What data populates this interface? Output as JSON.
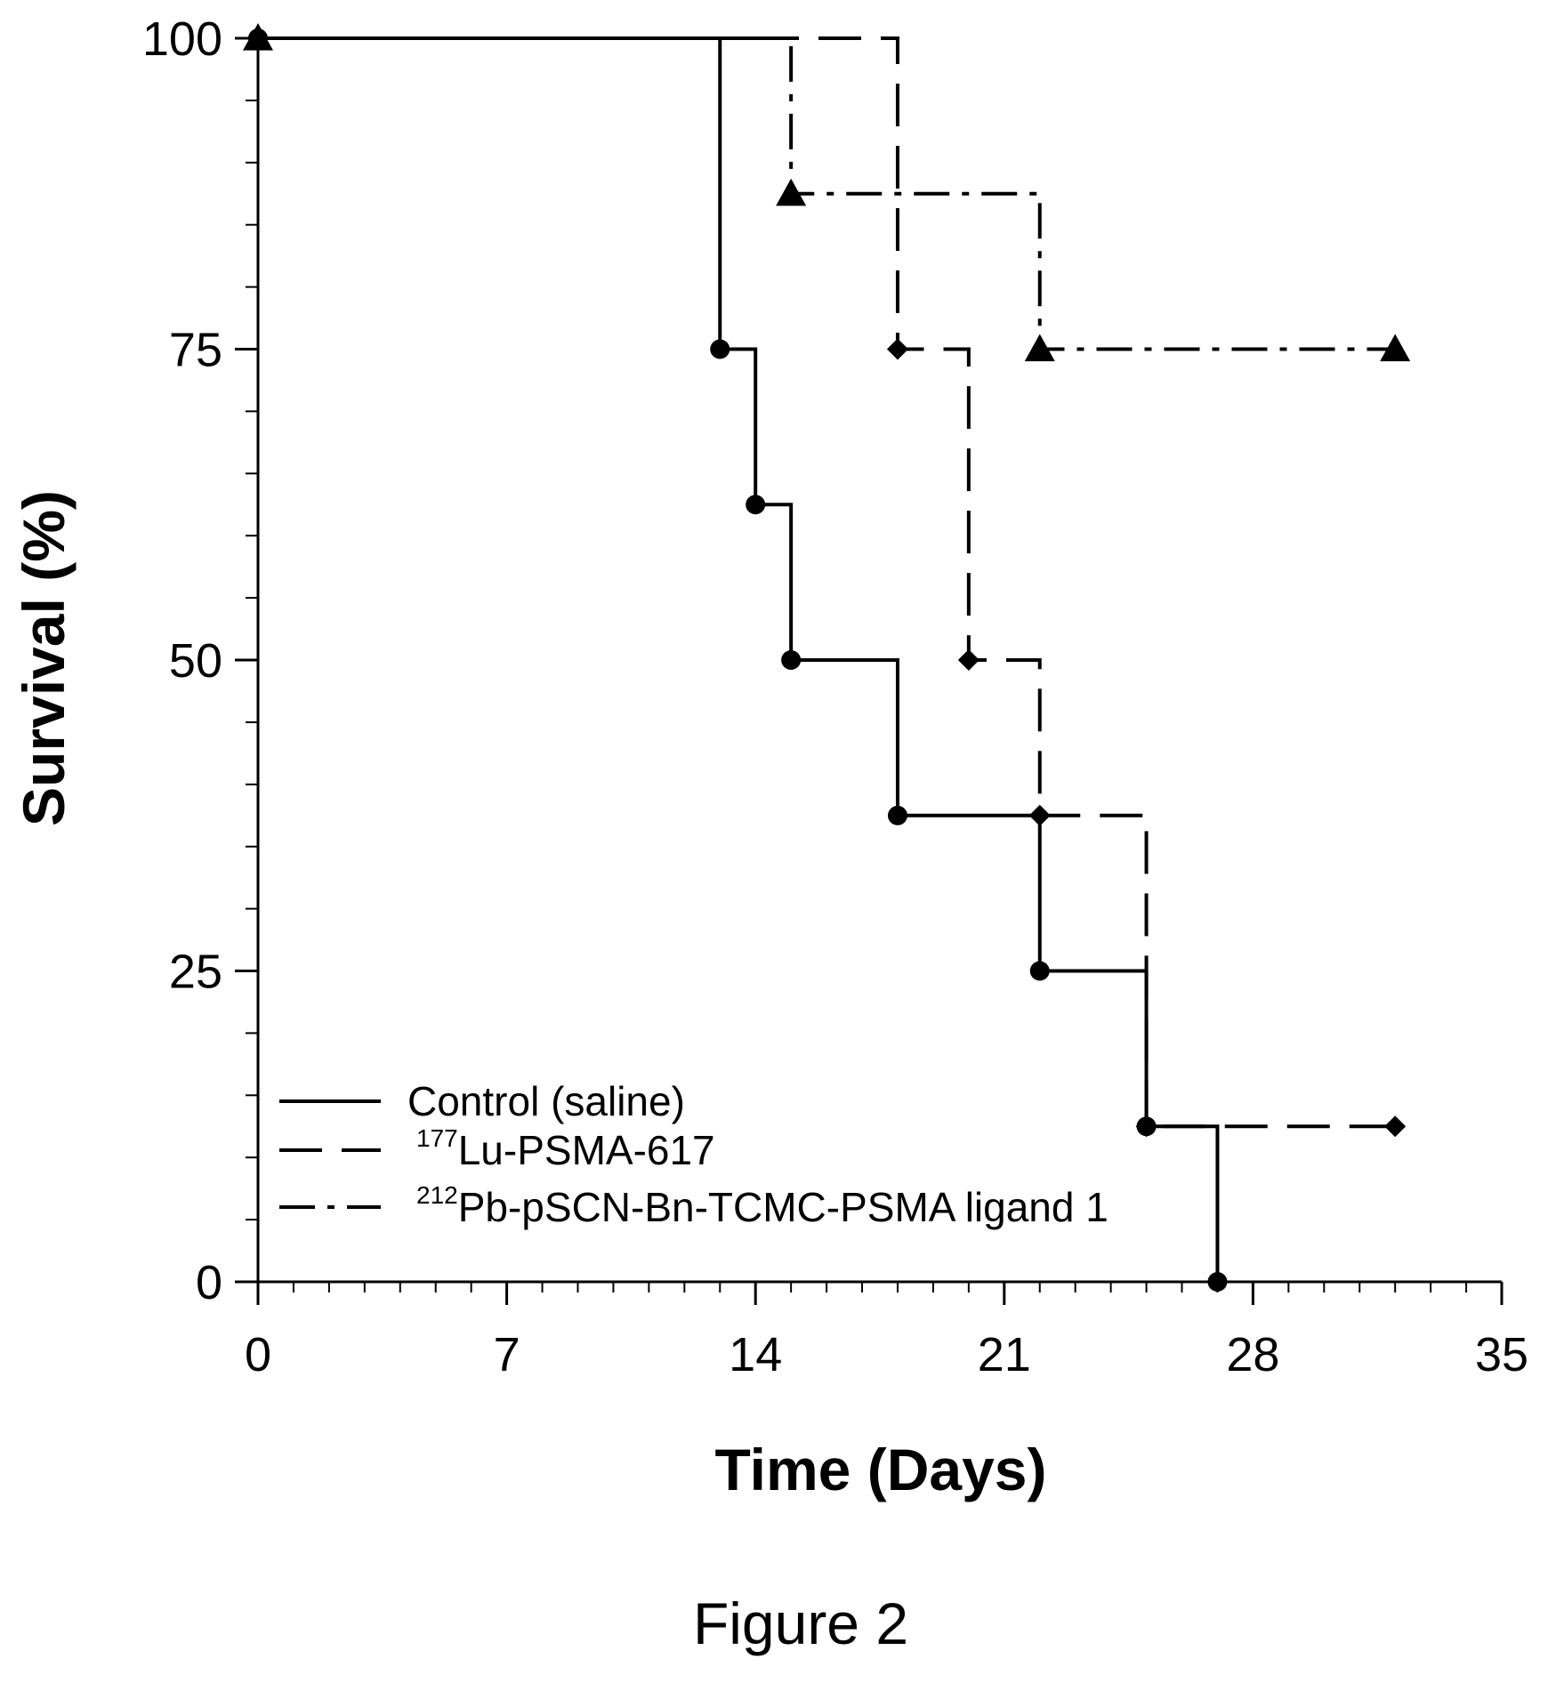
{
  "chart_data": {
    "type": "line",
    "subtype": "kaplan-meier-step",
    "xlabel": "Time (Days)",
    "ylabel": "Survival (%)",
    "xlim": [
      0,
      35
    ],
    "ylim": [
      0,
      100
    ],
    "x_ticks": [
      0,
      7,
      14,
      21,
      28,
      35
    ],
    "y_ticks": [
      0,
      25,
      50,
      75,
      100
    ],
    "x_ticks_text": [
      "0",
      "7",
      "14",
      "21",
      "28",
      "35"
    ],
    "y_ticks_text": [
      "0",
      "25",
      "50",
      "75",
      "100"
    ],
    "grid": false,
    "legend_position": "bottom-left",
    "series": [
      {
        "name": "Control (saline)",
        "name_sup": "",
        "name_rest": "Control (saline)",
        "line_style": "solid",
        "marker": "circle",
        "x": [
          0,
          13,
          14,
          15,
          18,
          22,
          25,
          27
        ],
        "y": [
          100,
          75,
          62.5,
          50,
          37.5,
          25,
          12.5,
          0
        ]
      },
      {
        "name": "177Lu-PSMA-617",
        "name_sup": "177",
        "name_rest": "Lu-PSMA-617",
        "line_style": "dashed",
        "marker": "diamond",
        "x": [
          0,
          18,
          20,
          22,
          25,
          32
        ],
        "y": [
          100,
          75,
          50,
          37.5,
          12.5,
          12.5
        ]
      },
      {
        "name": "212Pb-pSCN-Bn-TCMC-PSMA ligand 1",
        "name_sup": "212",
        "name_rest": "Pb-pSCN-Bn-TCMC-PSMA ligand 1",
        "line_style": "dashdot",
        "marker": "triangle",
        "x": [
          0,
          15,
          22,
          32
        ],
        "y": [
          100,
          87.5,
          75,
          75
        ]
      }
    ]
  },
  "caption": "Figure 2"
}
